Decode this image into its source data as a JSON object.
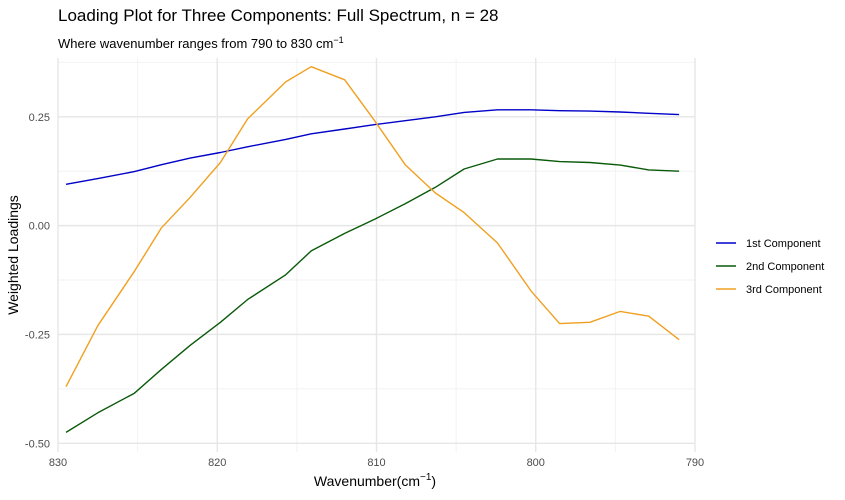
{
  "chart_data": {
    "type": "line",
    "title": "Loading Plot for Three Components: Full Spectrum, n = 28",
    "subtitle_main": "Where wavenumber ranges from 790 to 830 cm",
    "subtitle_sup": "−1",
    "xlabel_main": "Wavenumber(cm",
    "xlabel_sup": "−1",
    "xlabel_close": ")",
    "ylabel": "Weighted Loadings",
    "xlim": [
      830,
      790
    ],
    "ylim": [
      -0.5,
      0.38
    ],
    "x_reversed": true,
    "grid": true,
    "legend_position": "right",
    "x_ticks": [
      830,
      820,
      810,
      800,
      790
    ],
    "x_tick_labels": [
      "830",
      "820",
      "810",
      "800",
      "790"
    ],
    "y_ticks": [
      0.25,
      0.0,
      -0.25,
      -0.5
    ],
    "y_tick_labels": [
      "0.25",
      "0.00",
      "-0.25",
      "-0.50"
    ],
    "x": [
      829.5,
      827.5,
      825.2,
      823.5,
      821.7,
      819.8,
      818.1,
      815.7,
      814.1,
      812.0,
      810.1,
      808.2,
      806.3,
      804.5,
      802.4,
      800.3,
      798.5,
      796.6,
      794.7,
      792.9,
      791.0
    ],
    "series": [
      {
        "name": "1st Component",
        "color": "#0000c8",
        "values": [
          0.095,
          0.108,
          0.124,
          0.14,
          0.155,
          0.168,
          0.181,
          0.198,
          0.211,
          0.222,
          0.232,
          0.241,
          0.25,
          0.26,
          0.266,
          0.266,
          0.264,
          0.263,
          0.261,
          0.258,
          0.255
        ]
      },
      {
        "name": "2nd Component",
        "color": "#0a5a0a",
        "values": [
          -0.475,
          -0.43,
          -0.385,
          -0.33,
          -0.275,
          -0.222,
          -0.17,
          -0.113,
          -0.058,
          -0.018,
          0.015,
          0.05,
          0.088,
          0.13,
          0.153,
          0.153,
          0.147,
          0.145,
          0.139,
          0.128,
          0.125
        ]
      },
      {
        "name": "3rd Component",
        "color": "#f0a020",
        "values": [
          -0.37,
          -0.23,
          -0.105,
          -0.005,
          0.065,
          0.145,
          0.245,
          0.33,
          0.365,
          0.335,
          0.24,
          0.14,
          0.075,
          0.03,
          -0.04,
          -0.15,
          -0.225,
          -0.222,
          -0.197,
          -0.208,
          -0.262
        ]
      }
    ]
  }
}
